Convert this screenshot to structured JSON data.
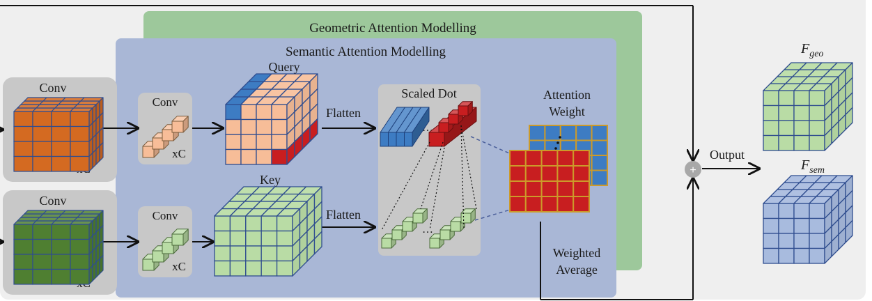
{
  "colors": {
    "panel_bg": "#efefef",
    "geo_panel": "#9dc89b",
    "sem_panel": "#a9b7d6",
    "gray_box": "#c8c8c8",
    "orange_front": "#d46a21",
    "green_dark": "#4f7f31",
    "peach": "#f7bd98",
    "query_blue": "#3d7cc3",
    "query_red": "#c81e20",
    "light_green": "#b9dca5",
    "fsem_blue": "#a8bbde",
    "grid_orange": "#cc9a2a",
    "edge_blue": "#2f4d8f",
    "plus_gray": "#a8a8a8"
  },
  "labels": {
    "geo_title": "Geometric Attention Modelling",
    "sem_title": "Semantic Attention Modelling",
    "conv_top": "Conv",
    "conv_bottom": "Conv",
    "xc_top": "xC",
    "xc_bottom": "xC",
    "conv_small_top": "Conv",
    "conv_small_bottom": "Conv",
    "xc_small_top": "xC",
    "xc_small_bottom": "xC",
    "query": "Query",
    "key": "Key",
    "flatten_top": "Flatten",
    "flatten_bottom": "Flatten",
    "scaled_dot": "Scaled Dot",
    "ellipsis_top": "…",
    "ellipsis_bottom": "…",
    "attention_line1": "Attention",
    "attention_line2": "Weight",
    "weighted_line1": "Weighted",
    "weighted_line2": "Average",
    "output": "Output",
    "f_geo_main": "F",
    "f_geo_sub": "geo",
    "f_sem_main": "F",
    "f_sem_sub": "sem",
    "plus": "+"
  }
}
